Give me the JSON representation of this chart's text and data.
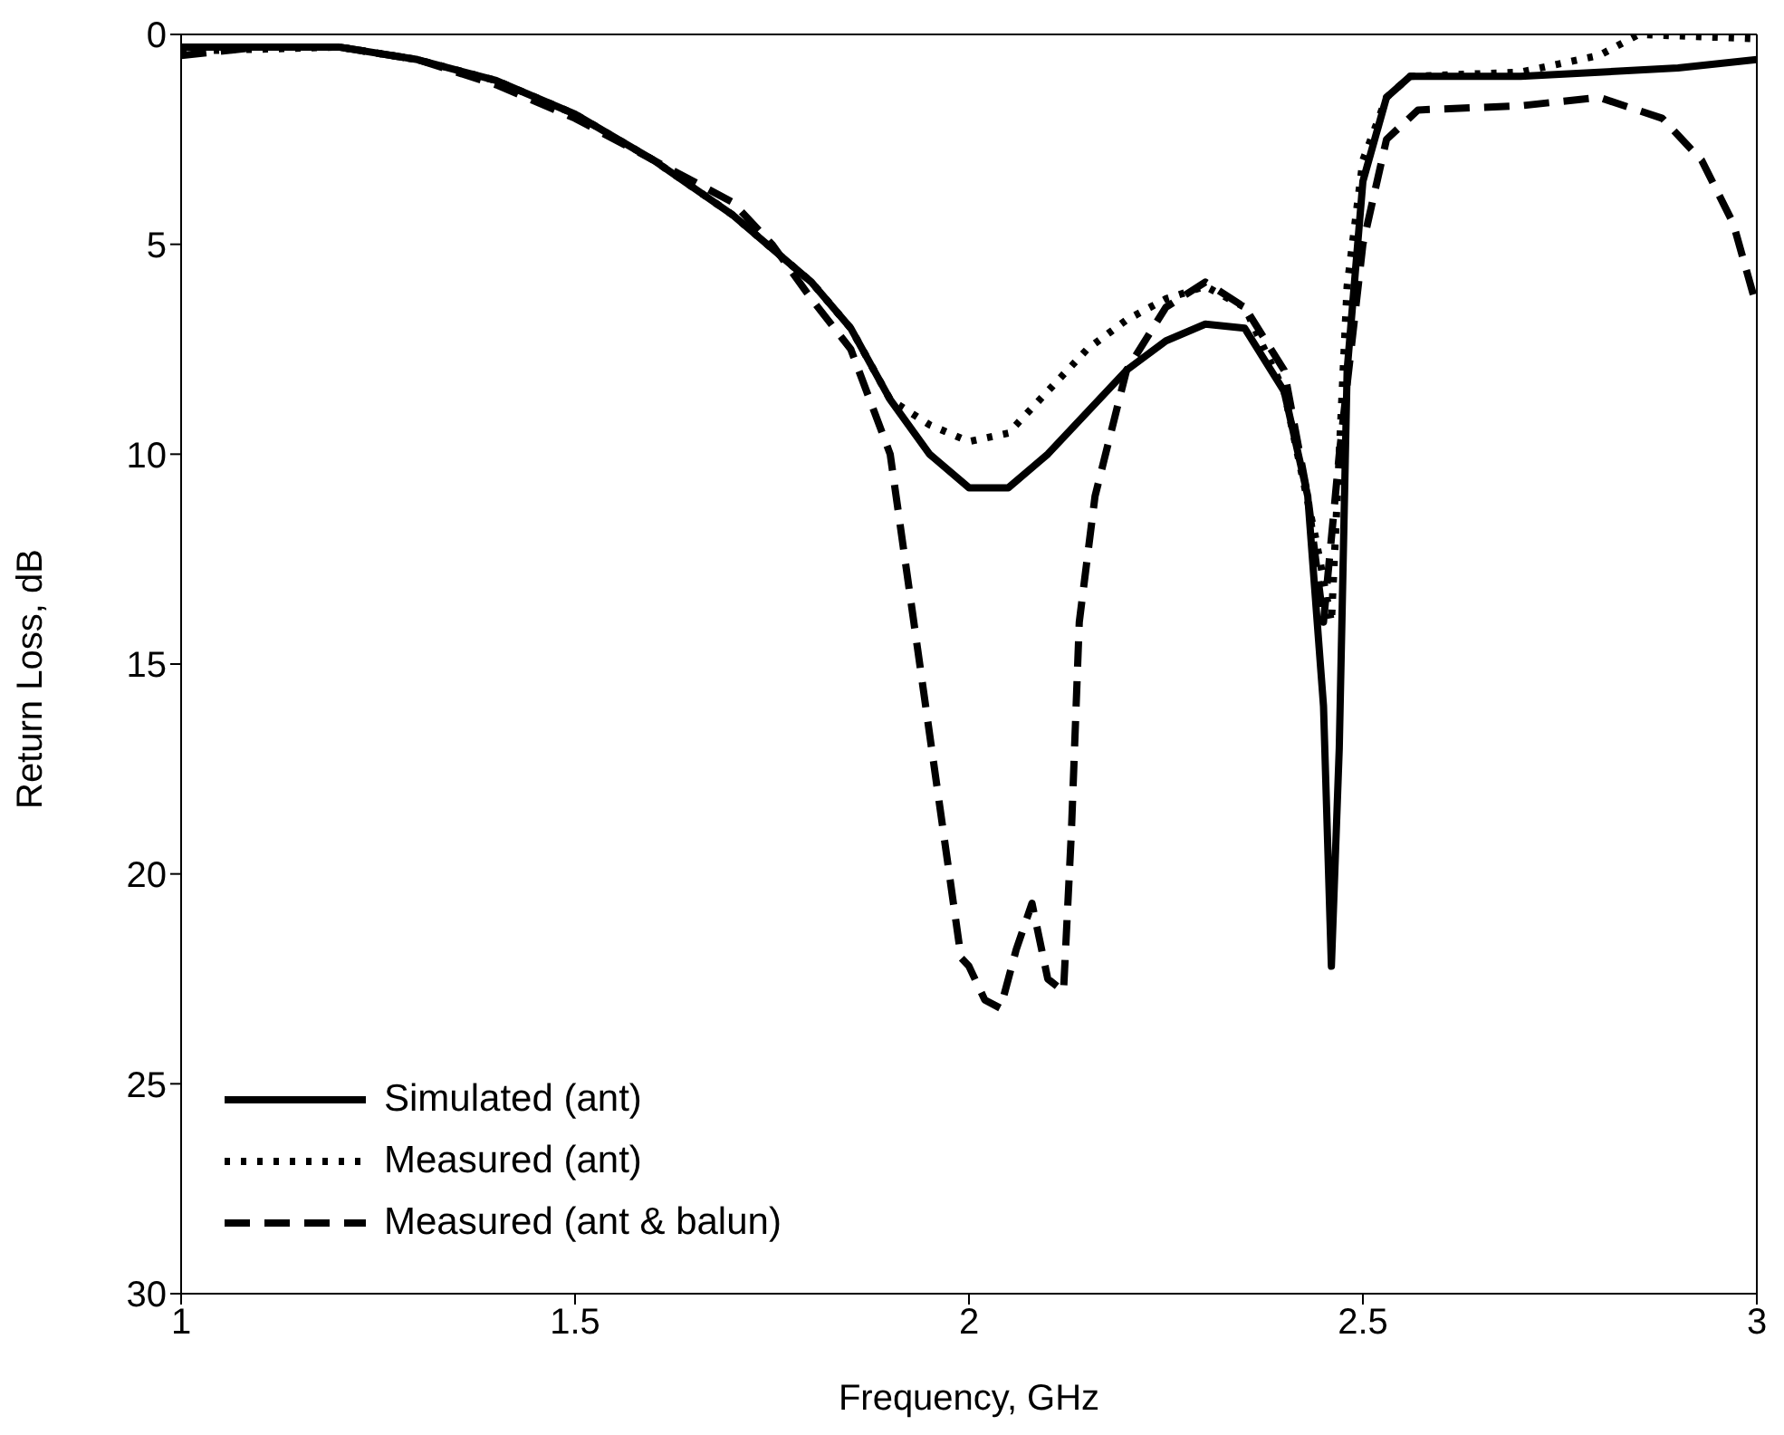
{
  "chart_data": {
    "type": "line",
    "xlabel": "Frequency, GHz",
    "ylabel": "Return Loss, dB",
    "xlim": [
      1,
      3
    ],
    "xticks": [
      1,
      1.5,
      2,
      2.5,
      3
    ],
    "ylim": [
      30,
      0
    ],
    "yticks": [
      0,
      5,
      10,
      15,
      20,
      25,
      30
    ],
    "grid": false,
    "legend": "bottom left",
    "marker": "none",
    "series": [
      {
        "name": "Simulated (ant)",
        "color": "#000000",
        "line_style": "solid",
        "x": [
          1,
          1.2,
          1.3,
          1.4,
          1.5,
          1.6,
          1.7,
          1.8,
          1.85,
          1.9,
          1.95,
          2,
          2.05,
          2.1,
          2.15,
          2.2,
          2.25,
          2.3,
          2.35,
          2.4,
          2.43,
          2.45,
          2.46,
          2.47,
          2.48,
          2.5,
          2.53,
          2.56,
          2.7,
          2.9,
          3
        ],
        "values": [
          0.3,
          0.3,
          0.6,
          1.1,
          1.9,
          3,
          4.3,
          5.9,
          7,
          8.7,
          10,
          10.8,
          10.8,
          10,
          9,
          8,
          7.3,
          6.9,
          7,
          8.5,
          11,
          16,
          22.2,
          17,
          8,
          3.5,
          1.5,
          1,
          1,
          0.8,
          0.6
        ]
      },
      {
        "name": "Measured (ant)",
        "color": "#000000",
        "line_style": "dotted",
        "x": [
          1,
          1.2,
          1.3,
          1.4,
          1.5,
          1.6,
          1.7,
          1.8,
          1.85,
          1.9,
          1.95,
          2,
          2.05,
          2.1,
          2.15,
          2.2,
          2.25,
          2.3,
          2.35,
          2.4,
          2.44,
          2.46,
          2.48,
          2.5,
          2.53,
          2.56,
          2.7,
          2.8,
          2.85,
          3
        ],
        "values": [
          0.4,
          0.3,
          0.6,
          1.1,
          1.9,
          3,
          4.3,
          5.9,
          7,
          8.7,
          9.3,
          9.7,
          9.5,
          8.5,
          7.5,
          6.8,
          6.3,
          6,
          6.5,
          8.5,
          12,
          14,
          6,
          3,
          1.5,
          1,
          0.9,
          0.5,
          0,
          0.1
        ]
      },
      {
        "name": "Measured (ant & balun)",
        "color": "#000000",
        "line_style": "dashed",
        "x": [
          1,
          1.1,
          1.2,
          1.3,
          1.4,
          1.5,
          1.6,
          1.7,
          1.75,
          1.8,
          1.85,
          1.9,
          1.93,
          1.96,
          1.99,
          2,
          2.02,
          2.04,
          2.06,
          2.08,
          2.1,
          2.12,
          2.13,
          2.14,
          2.16,
          2.2,
          2.25,
          2.3,
          2.35,
          2.4,
          2.43,
          2.45,
          2.47,
          2.5,
          2.53,
          2.57,
          2.7,
          2.8,
          2.88,
          2.93,
          2.97,
          3
        ],
        "values": [
          0.5,
          0.3,
          0.3,
          0.6,
          1.2,
          2,
          3,
          4,
          5,
          6.3,
          7.5,
          10,
          14,
          18,
          22,
          22.2,
          23,
          23.2,
          21.8,
          20.7,
          22.5,
          22.8,
          19,
          14,
          11,
          8,
          6.5,
          5.9,
          6.5,
          8,
          11,
          14,
          10,
          5,
          2.5,
          1.8,
          1.7,
          1.5,
          2,
          3,
          4.5,
          6.5
        ]
      }
    ]
  }
}
